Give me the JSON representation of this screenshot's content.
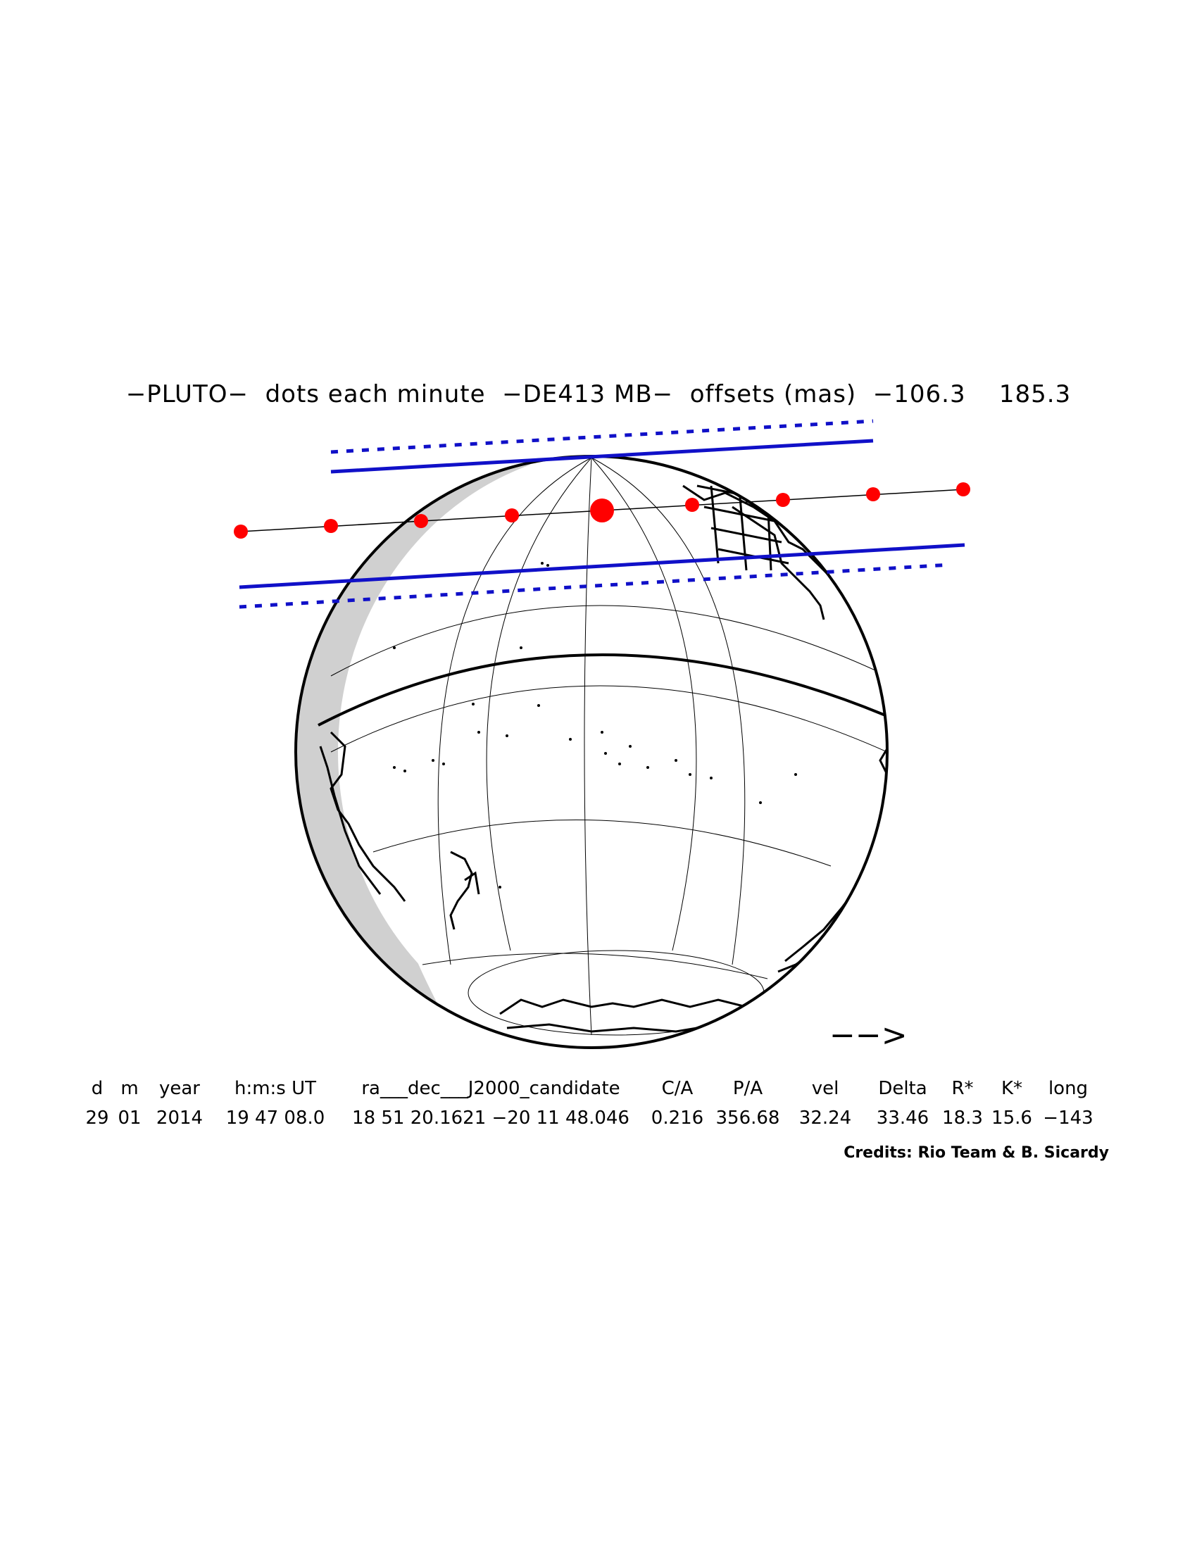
{
  "title": "−PLUTO−  dots each minute  −DE413 MB−  offsets (mas)  −106.3    185.3",
  "direction_arrow": "−−>",
  "colors": {
    "shadow_limit": "#1010c8",
    "path_dots": "#ff0000",
    "globe_night_shade": "#d0d0d0",
    "coastline": "#000000"
  },
  "chart_data": {
    "type": "occultation-map",
    "object": "PLUTO",
    "dot_interval": "each minute",
    "ephemeris": "DE413 MB",
    "offsets_mas": [
      -106.3,
      185.3
    ],
    "central_dot_count": 9,
    "central_dot_marks_CA": true,
    "path_limits": [
      "north shadow limit (solid)",
      "north uncertainty (dotted)",
      "south shadow limit (solid)",
      "south uncertainty (dotted)"
    ]
  },
  "params": {
    "headers": [
      "d",
      "m",
      "year",
      "h:m:s UT",
      "ra___dec___J2000_candidate",
      "C/A",
      "P/A",
      "vel",
      "Delta",
      "R*",
      "K*",
      "long"
    ],
    "values": [
      "29 01 2014",
      "19 47 08.0",
      "18 51 20.1621 −20 11 48.046",
      "0.216",
      "356.68",
      "32.24",
      "33.46",
      "18.3",
      "15.6",
      "−143"
    ],
    "row_headers": {
      "d": "d",
      "m": "m",
      "year": "year",
      "hms": "h:m:s UT",
      "radec": "ra___dec___J2000_candidate",
      "ca": "C/A",
      "pa": "P/A",
      "vel": "vel",
      "delta": "Delta",
      "rstar": "R*",
      "kstar": "K*",
      "long": "long"
    },
    "row_values": {
      "d": "29",
      "m": "01",
      "year": "2014",
      "hms": "19 47 08.0",
      "radec": "18 51 20.1621 −20 11 48.046",
      "ca": "0.216",
      "pa": "356.68",
      "vel": "32.24",
      "delta": "33.46",
      "rstar": "18.3",
      "kstar": "15.6",
      "long": "−143"
    }
  },
  "credits": "Credits: Rio Team & B. Sicardy"
}
